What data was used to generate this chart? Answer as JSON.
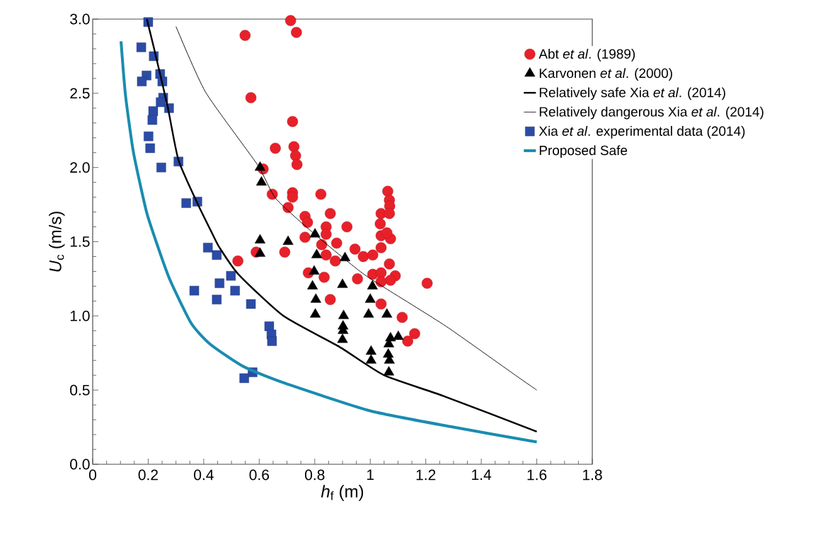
{
  "chart_data": {
    "type": "scatter",
    "xlabel": "*h*$_{f}$ (m)",
    "ylabel": "*U*$_{c}$ (m/s)",
    "xlim": [
      0,
      1.8
    ],
    "ylim": [
      0,
      3.0
    ],
    "xticks": [
      0,
      0.2,
      0.4,
      0.6,
      0.8,
      1,
      1.2,
      1.4,
      1.6,
      1.8
    ],
    "yticks": [
      {
        "value": 0,
        "label": "0.0"
      },
      {
        "value": 0.5,
        "label": "0.5"
      },
      {
        "value": 1,
        "label": "1.0"
      },
      {
        "value": 1.5,
        "label": "1.5"
      },
      {
        "value": 2,
        "label": "2.0"
      },
      {
        "value": 2.5,
        "label": "2.5"
      },
      {
        "value": 3,
        "label": "3.0"
      }
    ],
    "grid": false,
    "legend": "top right",
    "series": [
      {
        "name": "Abt *et al*. (1989)",
        "marker": "circle",
        "color": "#e8202a",
        "x": [
          0.549,
          0.57,
          0.713,
          0.734,
          0.72,
          0.658,
          0.725,
          0.731,
          0.736,
          0.614,
          0.647,
          0.72,
          0.72,
          0.822,
          0.704,
          0.765,
          0.774,
          0.856,
          0.841,
          0.841,
          0.916,
          0.765,
          0.825,
          0.879,
          0.692,
          0.841,
          0.874,
          0.945,
          0.777,
          0.834,
          0.856,
          0.954,
          0.523,
          0.589,
          1.063,
          1.069,
          1.07,
          1.039,
          1.069,
          1.036,
          1.039,
          1.073,
          1.06,
          1.039,
          0.975,
          1.009,
          1.069,
          1.009,
          1.039,
          1.09,
          1.073,
          1.039,
          1.205,
          1.039,
          1.115,
          1.16,
          1.135
        ],
        "values": [
          2.89,
          2.47,
          2.99,
          2.91,
          2.31,
          2.13,
          2.14,
          2.08,
          2.02,
          1.99,
          1.82,
          1.83,
          1.8,
          1.82,
          1.73,
          1.67,
          1.63,
          1.69,
          1.6,
          1.55,
          1.6,
          1.53,
          1.48,
          1.49,
          1.43,
          1.41,
          1.37,
          1.45,
          1.29,
          1.26,
          1.11,
          1.25,
          1.37,
          1.43,
          1.84,
          1.78,
          1.74,
          1.69,
          1.69,
          1.62,
          1.54,
          1.52,
          1.56,
          1.46,
          1.4,
          1.41,
          1.35,
          1.28,
          1.29,
          1.27,
          1.24,
          1.23,
          1.22,
          1.08,
          0.99,
          0.88,
          0.83
        ]
      },
      {
        "name": "Karvonen *et al*. (2000)",
        "marker": "triangle",
        "color": "#000000",
        "x": [
          0.603,
          0.608,
          0.603,
          0.603,
          0.704,
          0.801,
          0.807,
          0.798,
          0.792,
          0.804,
          0.802,
          0.909,
          0.9,
          0.904,
          0.902,
          0.902,
          0.9,
          1.008,
          1.0,
          0.994,
          1.06,
          1.073,
          1.101,
          1.067,
          1.003,
          1.003,
          1.065,
          1.069,
          1.067
        ],
        "values": [
          2.0,
          1.9,
          1.51,
          1.42,
          1.5,
          1.55,
          1.41,
          1.3,
          1.2,
          1.11,
          1.01,
          1.39,
          1.21,
          1.0,
          0.93,
          0.9,
          0.84,
          1.2,
          1.11,
          1.01,
          1.01,
          0.85,
          0.86,
          0.81,
          0.76,
          0.7,
          0.74,
          0.7,
          0.62
        ]
      },
      {
        "name": "Relatively safe Xia *et al*. (2014)",
        "type": "line",
        "color": "#000000",
        "x": [
          0.195,
          0.22,
          0.27,
          0.309,
          0.377,
          0.432,
          0.457,
          0.525,
          0.687,
          0.89,
          1.05,
          1.264,
          1.6
        ],
        "values": [
          3.0,
          2.81,
          2.41,
          2.05,
          1.76,
          1.55,
          1.46,
          1.28,
          1.0,
          0.79,
          0.6,
          0.46,
          0.22
        ]
      },
      {
        "name": "Relatively dangerous Xia *et al*. (2014)",
        "type": "line",
        "color": "#000000",
        "x": [
          0.3,
          0.406,
          0.593,
          0.66,
          0.8,
          0.963,
          1.043,
          1.273,
          1.523,
          1.6
        ],
        "values": [
          2.95,
          2.51,
          2.02,
          1.79,
          1.55,
          1.3,
          1.2,
          0.93,
          0.6,
          0.5
        ]
      },
      {
        "name": "Xia *et al*. experimental data (2014)",
        "marker": "square",
        "color": "#2b4ba6",
        "x": [
          0.2,
          0.175,
          0.22,
          0.194,
          0.243,
          0.177,
          0.251,
          0.254,
          0.245,
          0.275,
          0.218,
          0.215,
          0.201,
          0.207,
          0.309,
          0.247,
          0.337,
          0.377,
          0.415,
          0.447,
          0.498,
          0.457,
          0.513,
          0.366,
          0.447,
          0.57,
          0.636,
          0.644,
          0.646,
          0.576,
          0.546
        ],
        "values": [
          2.98,
          2.81,
          2.75,
          2.62,
          2.63,
          2.58,
          2.58,
          2.47,
          2.44,
          2.4,
          2.38,
          2.32,
          2.21,
          2.13,
          2.04,
          2.0,
          1.76,
          1.77,
          1.46,
          1.41,
          1.27,
          1.22,
          1.17,
          1.17,
          1.11,
          1.08,
          0.93,
          0.875,
          0.83,
          0.62,
          0.58
        ]
      },
      {
        "name": "Proposed Safe",
        "type": "line",
        "color": "#1a8cb0",
        "x": [
          0.102,
          0.118,
          0.147,
          0.194,
          0.236,
          0.279,
          0.355,
          0.423,
          0.542,
          0.687,
          1.0,
          1.3,
          1.6
        ],
        "values": [
          2.85,
          2.49,
          2.1,
          1.7,
          1.46,
          1.24,
          0.95,
          0.81,
          0.66,
          0.55,
          0.36,
          0.25,
          0.15
        ]
      }
    ]
  }
}
